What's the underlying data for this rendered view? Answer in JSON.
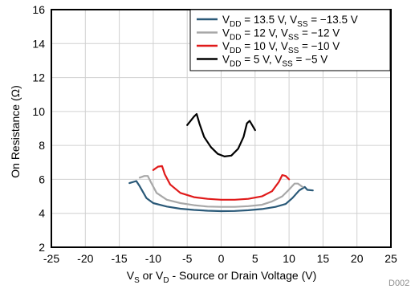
{
  "chart_data": {
    "type": "line",
    "xlabel": {
      "p1": "V",
      "s1": "S",
      "p2": " or V",
      "s2": "D",
      "p3": " - Source or Drain Voltage (V)"
    },
    "ylabel": "On Resistance (Ω)",
    "xlim": [
      -25,
      25
    ],
    "ylim": [
      2,
      16
    ],
    "xticks": [
      "-25",
      "-20",
      "-15",
      "-10",
      "-5",
      "0",
      "5",
      "10",
      "15",
      "20",
      "25"
    ],
    "yticks": [
      "2",
      "4",
      "6",
      "8",
      "10",
      "12",
      "14",
      "16"
    ],
    "grid": true,
    "legend_position": "top-right",
    "figure_code": "D002",
    "series": [
      {
        "name": "VDD = 13.5 V, VSS = −13.5 V",
        "legend": {
          "vdd": "13.5 V",
          "vss": "−13.5 V"
        },
        "color": "#2a5978",
        "points": [
          [
            -13.5,
            5.78
          ],
          [
            -12.5,
            5.9
          ],
          [
            -12,
            5.6
          ],
          [
            -11,
            4.9
          ],
          [
            -10,
            4.6
          ],
          [
            -8,
            4.4
          ],
          [
            -6,
            4.27
          ],
          [
            -4,
            4.2
          ],
          [
            -2,
            4.15
          ],
          [
            0,
            4.13
          ],
          [
            2,
            4.14
          ],
          [
            4,
            4.18
          ],
          [
            6,
            4.25
          ],
          [
            8,
            4.38
          ],
          [
            9.5,
            4.55
          ],
          [
            10.5,
            4.9
          ],
          [
            11.5,
            5.35
          ],
          [
            12.3,
            5.55
          ],
          [
            12.7,
            5.38
          ],
          [
            13.5,
            5.35
          ]
        ]
      },
      {
        "name": "VDD = 12 V, VSS = −12 V",
        "legend": {
          "vdd": "12 V",
          "vss": "−12 V"
        },
        "color": "#a8a8a8",
        "points": [
          [
            -12,
            6.1
          ],
          [
            -11.3,
            6.2
          ],
          [
            -10.8,
            6.2
          ],
          [
            -10.3,
            5.8
          ],
          [
            -9.5,
            5.2
          ],
          [
            -8,
            4.8
          ],
          [
            -6,
            4.6
          ],
          [
            -4,
            4.48
          ],
          [
            -2,
            4.4
          ],
          [
            0,
            4.38
          ],
          [
            2,
            4.38
          ],
          [
            4,
            4.42
          ],
          [
            6,
            4.5
          ],
          [
            7.5,
            4.7
          ],
          [
            9,
            5.0
          ],
          [
            10,
            5.4
          ],
          [
            10.8,
            5.75
          ],
          [
            11.3,
            5.75
          ],
          [
            12,
            5.55
          ]
        ]
      },
      {
        "name": "VDD = 10 V, VSS = −10 V",
        "legend": {
          "vdd": "10 V",
          "vss": "−10 V"
        },
        "color": "#e01a1a",
        "points": [
          [
            -10,
            6.55
          ],
          [
            -9.3,
            6.75
          ],
          [
            -8.7,
            6.78
          ],
          [
            -8.3,
            6.3
          ],
          [
            -7.5,
            5.7
          ],
          [
            -6,
            5.2
          ],
          [
            -4,
            4.95
          ],
          [
            -2,
            4.85
          ],
          [
            0,
            4.8
          ],
          [
            2,
            4.8
          ],
          [
            4,
            4.85
          ],
          [
            6,
            5.0
          ],
          [
            7.5,
            5.3
          ],
          [
            8.5,
            5.85
          ],
          [
            9,
            6.25
          ],
          [
            9.5,
            6.2
          ],
          [
            10,
            6.0
          ]
        ]
      },
      {
        "name": "VDD = 5 V, VSS = −5 V",
        "legend": {
          "vdd": "5 V",
          "vss": "−5 V"
        },
        "color": "#000000",
        "points": [
          [
            -5,
            9.2
          ],
          [
            -4,
            9.7
          ],
          [
            -3.6,
            9.85
          ],
          [
            -3.2,
            9.3
          ],
          [
            -2.5,
            8.5
          ],
          [
            -1.5,
            7.9
          ],
          [
            -0.5,
            7.5
          ],
          [
            0.5,
            7.35
          ],
          [
            1.5,
            7.4
          ],
          [
            2.5,
            7.8
          ],
          [
            3.3,
            8.5
          ],
          [
            3.8,
            9.3
          ],
          [
            4.2,
            9.45
          ],
          [
            5,
            8.9
          ]
        ]
      }
    ]
  }
}
